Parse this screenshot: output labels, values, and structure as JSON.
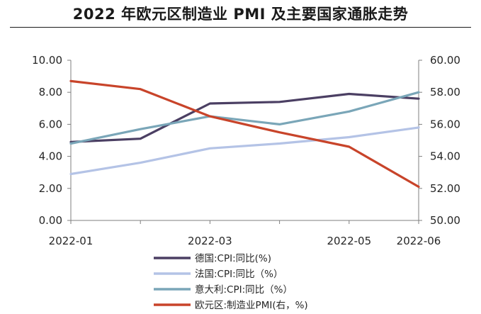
{
  "chart_data": {
    "type": "line",
    "title": "2022 年欧元区制造业 PMI 及主要国家通胀走势",
    "x_ticks": [
      "2022-01",
      "2022-03",
      "2022-05",
      "2022-06"
    ],
    "x": [
      "2022-01",
      "2022-02",
      "2022-03",
      "2022-04",
      "2022-05",
      "2022-06"
    ],
    "y_left": {
      "ylim": [
        0,
        10
      ],
      "ticks": [
        "0.00",
        "2.00",
        "4.00",
        "6.00",
        "8.00",
        "10.00"
      ]
    },
    "y_right": {
      "ylim": [
        50,
        60
      ],
      "ticks": [
        "50.00",
        "52.00",
        "54.00",
        "56.00",
        "58.00",
        "60.00"
      ]
    },
    "grid": false,
    "legend_position": "bottom",
    "series": [
      {
        "name": "德国:CPI:同比(%)",
        "axis": "left",
        "color": "#4b3f63",
        "values": [
          4.9,
          5.1,
          7.3,
          7.4,
          7.9,
          7.6
        ]
      },
      {
        "name": "法国:CPI:同比（%）",
        "axis": "left",
        "color": "#b4c3e6",
        "values": [
          2.9,
          3.6,
          4.5,
          4.8,
          5.2,
          5.8
        ]
      },
      {
        "name": "意大利:CPI:同比（%）",
        "axis": "left",
        "color": "#7aa6b8",
        "values": [
          4.8,
          5.7,
          6.5,
          6.0,
          6.8,
          8.0
        ]
      },
      {
        "name": "欧元区:制造业PMI(右，%)",
        "axis": "right",
        "color": "#c8442a",
        "values": [
          58.7,
          58.2,
          56.5,
          55.5,
          54.6,
          52.1
        ]
      }
    ]
  }
}
